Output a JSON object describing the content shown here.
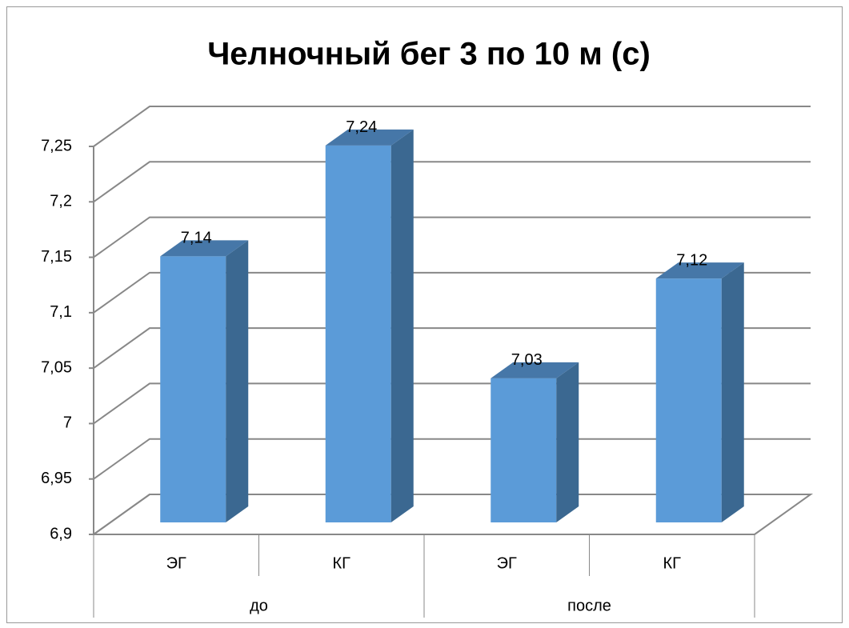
{
  "chart_data": {
    "type": "bar3d",
    "title": "Челночный бег 3 по 10 м (с)",
    "categories": [
      "ЭГ",
      "КГ",
      "ЭГ",
      "КГ"
    ],
    "groups": [
      "до",
      "после"
    ],
    "values": [
      7.14,
      7.24,
      7.03,
      7.12
    ],
    "value_labels": [
      "7,14",
      "7,24",
      "7,03",
      "7,12"
    ],
    "color": "#5b9bd8",
    "ylim": [
      6.9,
      7.25
    ],
    "yticks": [
      {
        "value": 6.9,
        "label": "6,9"
      },
      {
        "value": 6.95,
        "label": "6,95"
      },
      7,
      {
        "value": 7.05,
        "label": "7,05"
      },
      {
        "value": 7.1,
        "label": "7,1"
      },
      {
        "value": 7.15,
        "label": "7,15"
      },
      {
        "value": 7.2,
        "label": "7,2"
      },
      {
        "value": 7.25,
        "label": "7,25"
      }
    ],
    "grid": true
  }
}
